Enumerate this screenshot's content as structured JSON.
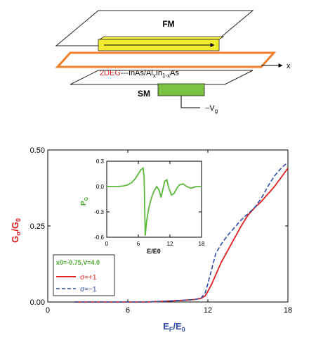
{
  "schematic": {
    "fm_label": "FM",
    "sm_label": "SM",
    "x_label": "x",
    "twodeg_red": "2DEG",
    "material_prefix": "---InAs/Al",
    "material_sub1": "x",
    "material_mid": "In",
    "material_sub2": "1-x",
    "material_suffix": "As",
    "gate_prefix": "−V",
    "gate_sub": "g",
    "colors": {
      "fm": "#f2ec2e",
      "sm": "#7cc242",
      "twodeg": "#f07f2b"
    }
  },
  "chart_data": [
    {
      "type": "line",
      "title": "",
      "xlabel": "E_F/E_0",
      "ylabel": "G_σ/G_0",
      "xlim": [
        0,
        18
      ],
      "ylim": [
        0,
        0.5
      ],
      "xticks": [
        "0",
        "6",
        "12",
        "18"
      ],
      "yticks": [
        "0.00",
        "0.25",
        "0.50"
      ],
      "grid": false,
      "legend_position": "bottom-left",
      "legend_header": "x0=-0.75,V=4.0",
      "series": [
        {
          "name": "σ=+1",
          "color": "#e02020",
          "style": "solid",
          "x": [
            2,
            7.5,
            9,
            10,
            11,
            11.5,
            11.8,
            12,
            12.3,
            12.6,
            13,
            13.5,
            14,
            14.5,
            15,
            15.5,
            16,
            16.5,
            17,
            17.5,
            18
          ],
          "y": [
            0,
            0,
            0.003,
            0.005,
            0.008,
            0.012,
            0.02,
            0.035,
            0.06,
            0.09,
            0.13,
            0.17,
            0.21,
            0.25,
            0.285,
            0.31,
            0.33,
            0.355,
            0.38,
            0.41,
            0.44
          ]
        },
        {
          "name": "σ=−1",
          "color": "#2f4aa8",
          "style": "dashed",
          "x": [
            2,
            7.5,
            9,
            10,
            11,
            11.5,
            11.8,
            12,
            12.3,
            12.6,
            13,
            13.5,
            14,
            14.5,
            15,
            15.5,
            16,
            16.5,
            17,
            17.5,
            18
          ],
          "y": [
            0,
            0,
            0.003,
            0.005,
            0.008,
            0.013,
            0.03,
            0.06,
            0.11,
            0.16,
            0.19,
            0.22,
            0.245,
            0.27,
            0.29,
            0.31,
            0.34,
            0.38,
            0.415,
            0.44,
            0.46
          ]
        }
      ]
    },
    {
      "type": "line",
      "title": "",
      "xlabel": "E/E0",
      "ylabel": "P_G",
      "xlim": [
        0,
        18
      ],
      "ylim": [
        -0.6,
        0.3
      ],
      "xticks": [
        "0",
        "6",
        "12",
        "18"
      ],
      "yticks": [
        "0.3",
        "0.0",
        "-0.3",
        "-0.6"
      ],
      "grid": false,
      "series": [
        {
          "color": "#5cb83c",
          "x": [
            0,
            2,
            3,
            4,
            4.8,
            5.5,
            6.0,
            6.5,
            6.9,
            7.1,
            7.3,
            7.6,
            8.0,
            8.5,
            9.0,
            9.5,
            10.0,
            10.3,
            10.6,
            11.0,
            11.4,
            11.8,
            12.3,
            12.8,
            13.3,
            13.8,
            14.5,
            15.2,
            16,
            17,
            18
          ],
          "y": [
            0,
            0,
            0.005,
            0.02,
            0.05,
            0.1,
            0.15,
            0.2,
            0.22,
            0.1,
            -0.58,
            -0.4,
            -0.25,
            -0.13,
            -0.05,
            0.0,
            -0.05,
            -0.13,
            -0.05,
            0.06,
            0.08,
            -0.02,
            -0.1,
            -0.08,
            -0.02,
            0.02,
            0.03,
            0.0,
            -0.02,
            0.0,
            0.0
          ]
        }
      ]
    }
  ]
}
